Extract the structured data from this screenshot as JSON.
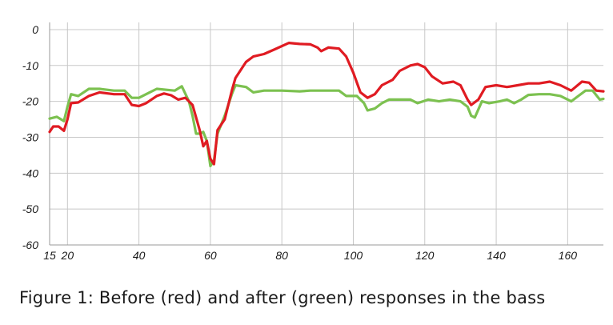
{
  "chart_data": {
    "type": "line",
    "title": "",
    "xlabel": "",
    "ylabel": "",
    "xlim": [
      15,
      170
    ],
    "ylim": [
      -60,
      2
    ],
    "x_ticks": [
      15,
      20,
      40,
      60,
      80,
      100,
      120,
      140,
      160
    ],
    "y_ticks": [
      0,
      -10,
      -20,
      -30,
      -40,
      -50,
      -60
    ],
    "grid": true,
    "legend": "none",
    "series": [
      {
        "color": "#e01b22",
        "points": [
          [
            15,
            -28.5
          ],
          [
            16,
            -27
          ],
          [
            17.5,
            -27
          ],
          [
            19,
            -28.2
          ],
          [
            20,
            -25
          ],
          [
            21,
            -20.5
          ],
          [
            23,
            -20.3
          ],
          [
            26,
            -18.5
          ],
          [
            29,
            -17.5
          ],
          [
            33,
            -18
          ],
          [
            36,
            -18
          ],
          [
            38,
            -21
          ],
          [
            40,
            -21.3
          ],
          [
            42,
            -20.5
          ],
          [
            45,
            -18.5
          ],
          [
            47,
            -17.8
          ],
          [
            49,
            -18.3
          ],
          [
            51,
            -19.5
          ],
          [
            53,
            -19
          ],
          [
            55,
            -21
          ],
          [
            57,
            -28
          ],
          [
            58,
            -32.5
          ],
          [
            59,
            -31
          ],
          [
            60,
            -36
          ],
          [
            61,
            -37.5
          ],
          [
            62,
            -28
          ],
          [
            64,
            -25
          ],
          [
            66,
            -17
          ],
          [
            67,
            -13.5
          ],
          [
            70,
            -9
          ],
          [
            72,
            -7.5
          ],
          [
            75,
            -6.8
          ],
          [
            78,
            -5.5
          ],
          [
            82,
            -3.7
          ],
          [
            85,
            -4
          ],
          [
            88,
            -4.1
          ],
          [
            90,
            -5
          ],
          [
            91,
            -6
          ],
          [
            93,
            -5
          ],
          [
            96,
            -5.3
          ],
          [
            98,
            -7.5
          ],
          [
            100,
            -12
          ],
          [
            102,
            -17.5
          ],
          [
            104,
            -19
          ],
          [
            106,
            -18
          ],
          [
            108,
            -15.5
          ],
          [
            111,
            -14
          ],
          [
            113,
            -11.5
          ],
          [
            116,
            -10
          ],
          [
            118,
            -9.6
          ],
          [
            120,
            -10.5
          ],
          [
            122,
            -13
          ],
          [
            125,
            -15
          ],
          [
            128,
            -14.5
          ],
          [
            130,
            -15.5
          ],
          [
            132,
            -19.5
          ],
          [
            133,
            -21
          ],
          [
            135,
            -19.5
          ],
          [
            137,
            -16
          ],
          [
            140,
            -15.5
          ],
          [
            143,
            -16
          ],
          [
            146,
            -15.5
          ],
          [
            149,
            -15
          ],
          [
            152,
            -15
          ],
          [
            155,
            -14.5
          ],
          [
            158,
            -15.5
          ],
          [
            161,
            -17
          ],
          [
            164,
            -14.5
          ],
          [
            166,
            -14.8
          ],
          [
            168,
            -17
          ],
          [
            170,
            -17.2
          ]
        ]
      },
      {
        "color": "#7cc150",
        "points": [
          [
            15,
            -24.8
          ],
          [
            17,
            -24.3
          ],
          [
            19,
            -25.5
          ],
          [
            20,
            -21.5
          ],
          [
            21,
            -18
          ],
          [
            23,
            -18.5
          ],
          [
            26,
            -16.5
          ],
          [
            29,
            -16.5
          ],
          [
            33,
            -17
          ],
          [
            36,
            -17
          ],
          [
            38,
            -19
          ],
          [
            40,
            -19
          ],
          [
            43,
            -17.5
          ],
          [
            45,
            -16.5
          ],
          [
            48,
            -16.8
          ],
          [
            50,
            -17
          ],
          [
            52,
            -15.8
          ],
          [
            54,
            -20
          ],
          [
            55,
            -24
          ],
          [
            56,
            -29
          ],
          [
            57,
            -29
          ],
          [
            58,
            -28.5
          ],
          [
            59,
            -31
          ],
          [
            60,
            -38
          ],
          [
            61,
            -36.5
          ],
          [
            62,
            -29
          ],
          [
            64,
            -24
          ],
          [
            66,
            -18
          ],
          [
            67,
            -15.5
          ],
          [
            70,
            -16
          ],
          [
            72,
            -17.5
          ],
          [
            75,
            -17
          ],
          [
            80,
            -17
          ],
          [
            85,
            -17.2
          ],
          [
            88,
            -17
          ],
          [
            92,
            -17
          ],
          [
            96,
            -17
          ],
          [
            98,
            -18.5
          ],
          [
            101,
            -18.5
          ],
          [
            103,
            -20.5
          ],
          [
            104,
            -22.5
          ],
          [
            106,
            -22
          ],
          [
            108,
            -20.5
          ],
          [
            110,
            -19.5
          ],
          [
            113,
            -19.5
          ],
          [
            116,
            -19.5
          ],
          [
            118,
            -20.5
          ],
          [
            121,
            -19.5
          ],
          [
            124,
            -20
          ],
          [
            127,
            -19.5
          ],
          [
            130,
            -20
          ],
          [
            132,
            -21.5
          ],
          [
            133,
            -24
          ],
          [
            134,
            -24.5
          ],
          [
            136,
            -20
          ],
          [
            138,
            -20.5
          ],
          [
            141,
            -20
          ],
          [
            143,
            -19.5
          ],
          [
            145,
            -20.5
          ],
          [
            147,
            -19.5
          ],
          [
            149,
            -18.2
          ],
          [
            152,
            -18
          ],
          [
            155,
            -18
          ],
          [
            158,
            -18.5
          ],
          [
            161,
            -20
          ],
          [
            163,
            -18.5
          ],
          [
            165,
            -17
          ],
          [
            167,
            -17
          ],
          [
            169,
            -19.5
          ],
          [
            170,
            -19.3
          ]
        ]
      }
    ]
  },
  "caption": "Figure 1: Before (red) and after (green) responses in the bass"
}
